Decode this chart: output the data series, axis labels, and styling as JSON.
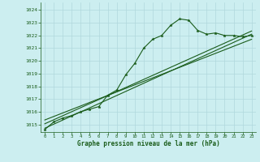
{
  "title": "Graphe pression niveau de la mer (hPa)",
  "bg_color": "#cceef0",
  "grid_color": "#b0d8dc",
  "line_color": "#1a5c1a",
  "ylim": [
    1014.4,
    1024.6
  ],
  "xlim": [
    -0.5,
    23.5
  ],
  "yticks": [
    1015,
    1016,
    1017,
    1018,
    1019,
    1020,
    1021,
    1022,
    1023,
    1024
  ],
  "xticks": [
    0,
    1,
    2,
    3,
    4,
    5,
    6,
    7,
    8,
    9,
    10,
    11,
    12,
    13,
    14,
    15,
    16,
    17,
    18,
    19,
    20,
    21,
    22,
    23
  ],
  "main_series": [
    1014.6,
    1015.2,
    1015.5,
    1015.7,
    1016.0,
    1016.2,
    1016.4,
    1017.3,
    1017.7,
    1018.9,
    1019.8,
    1021.0,
    1021.7,
    1022.0,
    1022.8,
    1023.3,
    1023.2,
    1022.4,
    1022.1,
    1022.2,
    1022.0,
    1022.0,
    1021.9,
    1022.0
  ],
  "trend1_x": [
    0,
    23
  ],
  "trend1_y": [
    1014.7,
    1022.1
  ],
  "trend2_x": [
    0,
    23
  ],
  "trend2_y": [
    1015.05,
    1022.35
  ],
  "trend3_x": [
    0,
    23
  ],
  "trend3_y": [
    1015.35,
    1021.7
  ]
}
